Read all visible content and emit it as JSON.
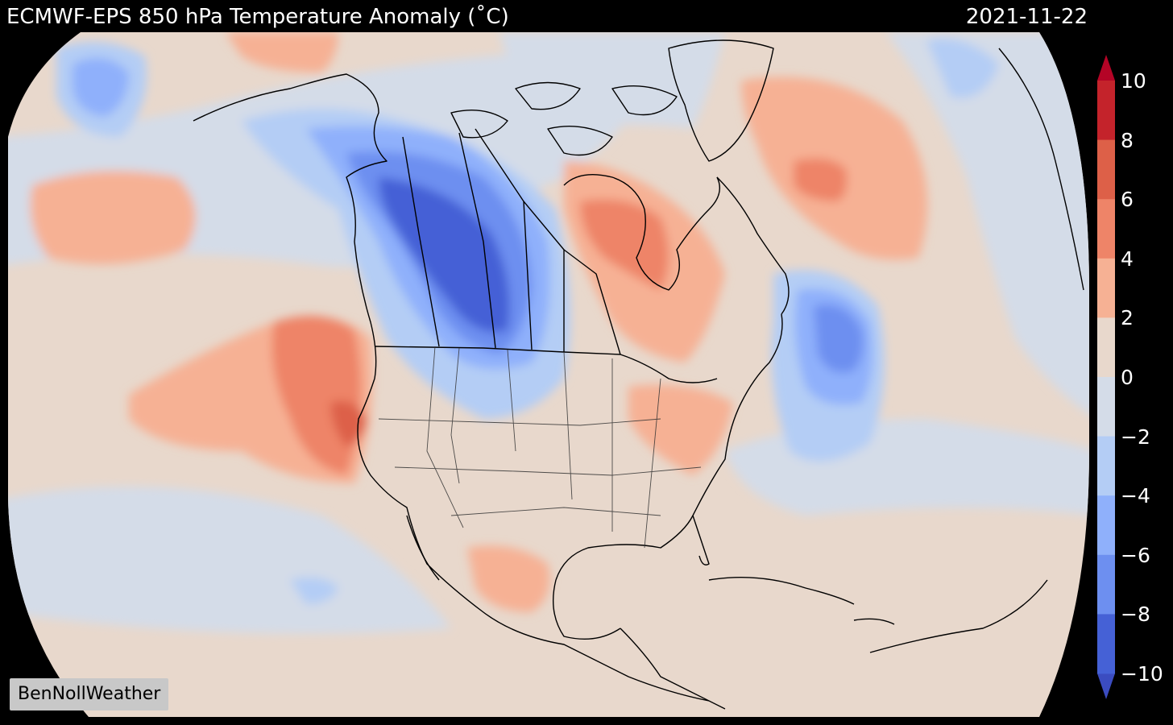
{
  "header": {
    "title": "ECMWF-EPS 850 hPa Temperature Anomaly (˚C)",
    "date": "2021-11-22"
  },
  "credit": "BenNollWeather",
  "colorbar": {
    "ticks": [
      "10",
      "8",
      "6",
      "4",
      "2",
      "0",
      "−2",
      "−4",
      "−6",
      "−8",
      "−10"
    ],
    "levels": [
      {
        "range": [
          8,
          10
        ],
        "color": "#c4232b"
      },
      {
        "range": [
          6,
          8
        ],
        "color": "#dd6048"
      },
      {
        "range": [
          4,
          6
        ],
        "color": "#ee8468"
      },
      {
        "range": [
          2,
          4
        ],
        "color": "#f6b194"
      },
      {
        "range": [
          0,
          2
        ],
        "color": "#e8d8cc"
      },
      {
        "range": [
          -2,
          0
        ],
        "color": "#d4dce8"
      },
      {
        "range": [
          -4,
          -2
        ],
        "color": "#b4cdf5"
      },
      {
        "range": [
          -6,
          -4
        ],
        "color": "#8fb0fb"
      },
      {
        "range": [
          -8,
          -6
        ],
        "color": "#6d8ff0"
      },
      {
        "range": [
          -10,
          -8
        ],
        "color": "#4561d6"
      }
    ],
    "extend_max_color": "#b40426",
    "extend_min_color": "#3b4cc0"
  },
  "map": {
    "projection": "orthographic",
    "region": "North America",
    "variable": "850 hPa temperature anomaly",
    "units": "˚C",
    "anomaly_regions": [
      {
        "area": "Western Canada (Alberta/Saskatchewan)",
        "sign": "cold",
        "level": "-8 to -10"
      },
      {
        "area": "Northern Rockies / Northern Plains",
        "sign": "cold",
        "level": "-4 to -8"
      },
      {
        "area": "North Atlantic off Newfoundland",
        "sign": "cold",
        "level": "-6 to -8"
      },
      {
        "area": "Hudson Bay / Quebec",
        "sign": "warm",
        "level": "2 to 6"
      },
      {
        "area": "Greenland Sea / North Atlantic",
        "sign": "warm",
        "level": "2 to 6"
      },
      {
        "area": "Northeast Pacific off California",
        "sign": "warm",
        "level": "2 to 8"
      },
      {
        "area": "Eastern United States",
        "sign": "warm",
        "level": "0 to 4"
      },
      {
        "area": "Central Pacific",
        "sign": "warm",
        "level": "2 to 4"
      }
    ]
  }
}
